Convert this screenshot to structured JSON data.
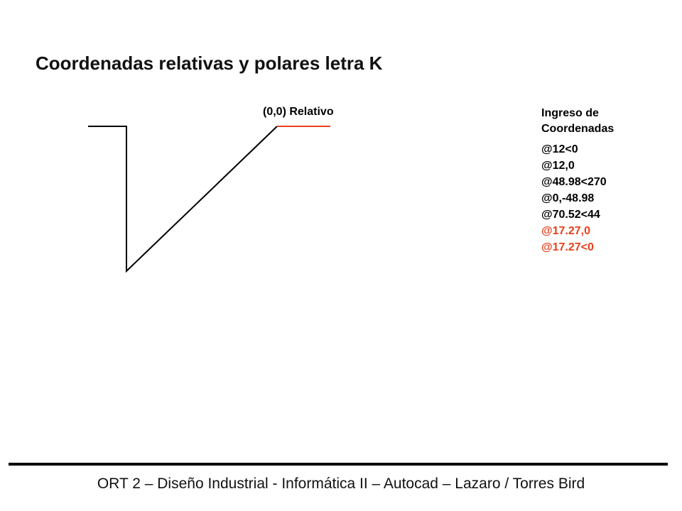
{
  "title": "Coordenadas relativas y polares letra K",
  "origin_label": "(0,0) Relativo",
  "input_heading": [
    "Ingreso de",
    "Coordenadas"
  ],
  "commands": [
    "@12<0",
    "@12,0",
    "@48.98<270",
    "@0,-48.98",
    "@70.52<44",
    "@17.27,0",
    "@17.27<0"
  ],
  "footer": "ORT 2 – Diseño Industrial - Informática II – Autocad – Lazaro / Torres Bird"
}
